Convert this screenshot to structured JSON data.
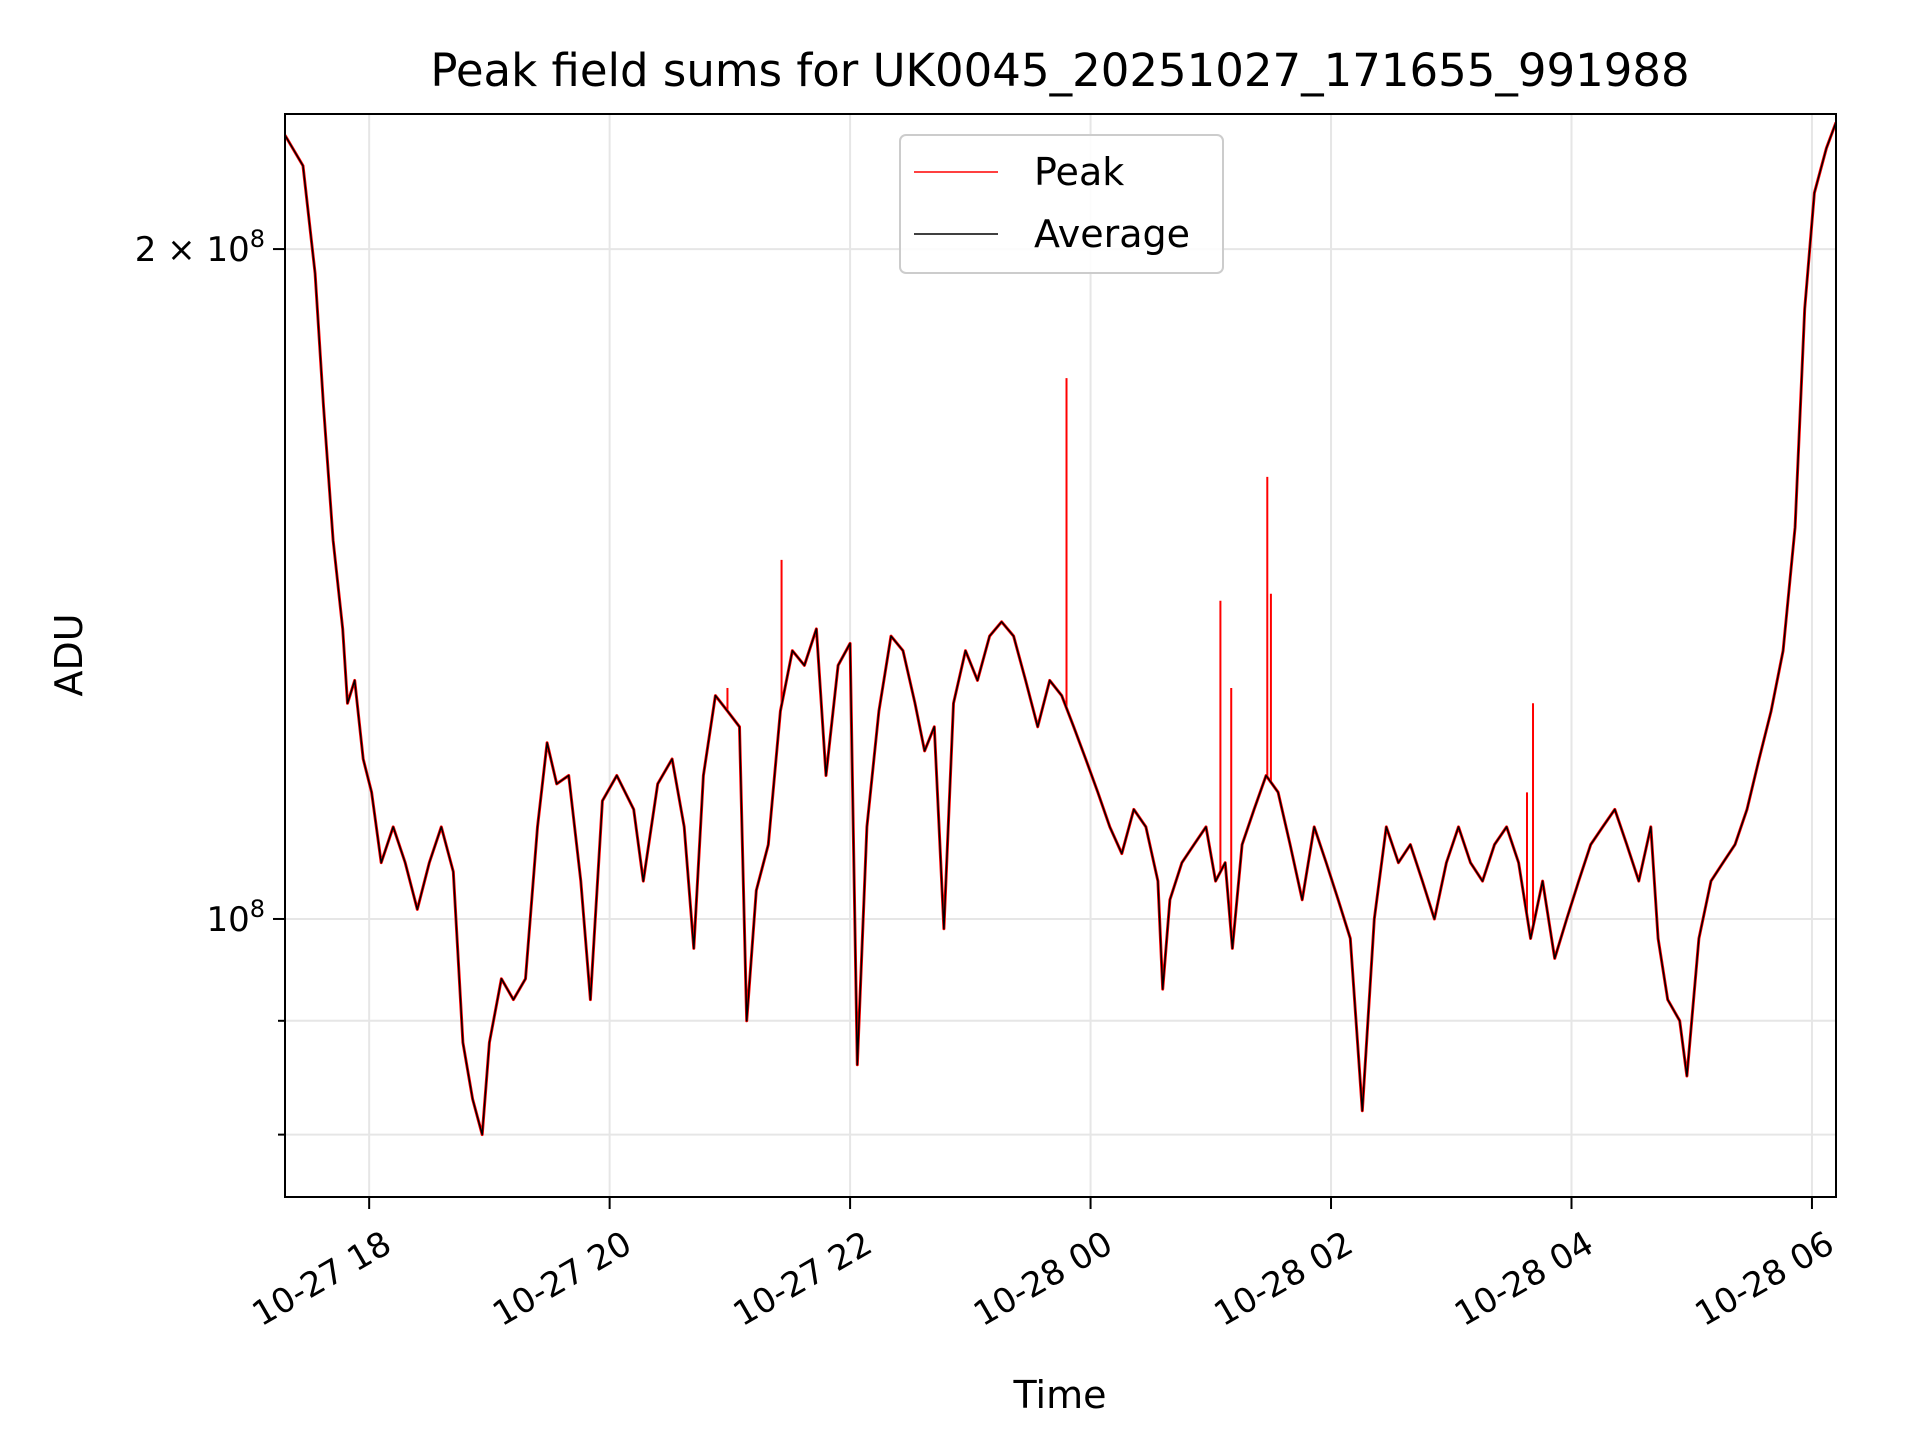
{
  "chart_data": {
    "type": "line",
    "title": "Peak field sums for UK0045_20251027_171655_991988",
    "xlabel": "Time",
    "ylabel": "ADU",
    "yscale": "log",
    "xlim": [
      17.3,
      30.2
    ],
    "ylim": [
      75000000,
      230000000
    ],
    "grid": true,
    "legend_position": "top-center",
    "x_ticks": [
      {
        "value": 18,
        "label": "10-27 18"
      },
      {
        "value": 20,
        "label": "10-27 20"
      },
      {
        "value": 22,
        "label": "10-27 22"
      },
      {
        "value": 24,
        "label": "10-28 00"
      },
      {
        "value": 26,
        "label": "10-28 02"
      },
      {
        "value": 28,
        "label": "10-28 04"
      },
      {
        "value": 30,
        "label": "10-28 06"
      }
    ],
    "y_major_ticks": [
      {
        "value": 100000000,
        "base": "10",
        "exp": "8",
        "label": "10^8"
      },
      {
        "value": 200000000,
        "mant": "2",
        "base": "10",
        "exp": "8",
        "label": "2×10^8"
      }
    ],
    "y_minor_ticks": [
      80000000,
      90000000
    ],
    "series": [
      {
        "name": "Peak",
        "color": "#ff0000",
        "spikes": [
          {
            "x": 20.98,
            "y": 127000000
          },
          {
            "x": 21.43,
            "y": 145000000
          },
          {
            "x": 23.8,
            "y": 175000000
          },
          {
            "x": 25.08,
            "y": 139000000
          },
          {
            "x": 25.17,
            "y": 127000000
          },
          {
            "x": 25.47,
            "y": 158000000
          },
          {
            "x": 25.5,
            "y": 140000000
          },
          {
            "x": 27.63,
            "y": 114000000
          },
          {
            "x": 27.68,
            "y": 125000000
          }
        ]
      },
      {
        "name": "Average",
        "color": "#000000",
        "points": [
          [
            17.3,
            225000000
          ],
          [
            17.45,
            218000000
          ],
          [
            17.55,
            195000000
          ],
          [
            17.62,
            170000000
          ],
          [
            17.7,
            148000000
          ],
          [
            17.78,
            135000000
          ],
          [
            17.82,
            125000000
          ],
          [
            17.88,
            128000000
          ],
          [
            17.95,
            118000000
          ],
          [
            18.02,
            114000000
          ],
          [
            18.1,
            106000000
          ],
          [
            18.2,
            110000000
          ],
          [
            18.3,
            106000000
          ],
          [
            18.4,
            101000000
          ],
          [
            18.5,
            106000000
          ],
          [
            18.6,
            110000000
          ],
          [
            18.7,
            105000000
          ],
          [
            18.78,
            88000000
          ],
          [
            18.86,
            83000000
          ],
          [
            18.94,
            80000000
          ],
          [
            19.0,
            88000000
          ],
          [
            19.1,
            94000000
          ],
          [
            19.2,
            92000000
          ],
          [
            19.3,
            94000000
          ],
          [
            19.4,
            110000000
          ],
          [
            19.48,
            120000000
          ],
          [
            19.56,
            115000000
          ],
          [
            19.66,
            116000000
          ],
          [
            19.76,
            104000000
          ],
          [
            19.84,
            92000000
          ],
          [
            19.94,
            113000000
          ],
          [
            20.06,
            116000000
          ],
          [
            20.2,
            112000000
          ],
          [
            20.28,
            104000000
          ],
          [
            20.4,
            115000000
          ],
          [
            20.52,
            118000000
          ],
          [
            20.62,
            110000000
          ],
          [
            20.7,
            97000000
          ],
          [
            20.78,
            116000000
          ],
          [
            20.88,
            126000000
          ],
          [
            20.98,
            124000000
          ],
          [
            21.08,
            122000000
          ],
          [
            21.14,
            90000000
          ],
          [
            21.22,
            103000000
          ],
          [
            21.32,
            108000000
          ],
          [
            21.42,
            124000000
          ],
          [
            21.52,
            132000000
          ],
          [
            21.62,
            130000000
          ],
          [
            21.72,
            135000000
          ],
          [
            21.8,
            116000000
          ],
          [
            21.9,
            130000000
          ],
          [
            22.0,
            133000000
          ],
          [
            22.06,
            86000000
          ],
          [
            22.14,
            110000000
          ],
          [
            22.24,
            124000000
          ],
          [
            22.34,
            134000000
          ],
          [
            22.44,
            132000000
          ],
          [
            22.54,
            125000000
          ],
          [
            22.62,
            119000000
          ],
          [
            22.7,
            122000000
          ],
          [
            22.78,
            99000000
          ],
          [
            22.86,
            125000000
          ],
          [
            22.96,
            132000000
          ],
          [
            23.06,
            128000000
          ],
          [
            23.16,
            134000000
          ],
          [
            23.26,
            136000000
          ],
          [
            23.36,
            134000000
          ],
          [
            23.46,
            128000000
          ],
          [
            23.56,
            122000000
          ],
          [
            23.66,
            128000000
          ],
          [
            23.76,
            126000000
          ],
          [
            23.86,
            122000000
          ],
          [
            23.96,
            118000000
          ],
          [
            24.06,
            114000000
          ],
          [
            24.16,
            110000000
          ],
          [
            24.26,
            107000000
          ],
          [
            24.36,
            112000000
          ],
          [
            24.46,
            110000000
          ],
          [
            24.56,
            104000000
          ],
          [
            24.6,
            93000000
          ],
          [
            24.66,
            102000000
          ],
          [
            24.76,
            106000000
          ],
          [
            24.86,
            108000000
          ],
          [
            24.96,
            110000000
          ],
          [
            25.04,
            104000000
          ],
          [
            25.12,
            106000000
          ],
          [
            25.18,
            97000000
          ],
          [
            25.26,
            108000000
          ],
          [
            25.36,
            112000000
          ],
          [
            25.46,
            116000000
          ],
          [
            25.56,
            114000000
          ],
          [
            25.66,
            108000000
          ],
          [
            25.76,
            102000000
          ],
          [
            25.86,
            110000000
          ],
          [
            25.96,
            106000000
          ],
          [
            26.06,
            102000000
          ],
          [
            26.16,
            98000000
          ],
          [
            26.26,
            82000000
          ],
          [
            26.36,
            100000000
          ],
          [
            26.46,
            110000000
          ],
          [
            26.56,
            106000000
          ],
          [
            26.66,
            108000000
          ],
          [
            26.76,
            104000000
          ],
          [
            26.86,
            100000000
          ],
          [
            26.96,
            106000000
          ],
          [
            27.06,
            110000000
          ],
          [
            27.16,
            106000000
          ],
          [
            27.26,
            104000000
          ],
          [
            27.36,
            108000000
          ],
          [
            27.46,
            110000000
          ],
          [
            27.56,
            106000000
          ],
          [
            27.66,
            98000000
          ],
          [
            27.76,
            104000000
          ],
          [
            27.86,
            96000000
          ],
          [
            27.96,
            100000000
          ],
          [
            28.06,
            104000000
          ],
          [
            28.16,
            108000000
          ],
          [
            28.26,
            110000000
          ],
          [
            28.36,
            112000000
          ],
          [
            28.46,
            108000000
          ],
          [
            28.56,
            104000000
          ],
          [
            28.66,
            110000000
          ],
          [
            28.72,
            98000000
          ],
          [
            28.8,
            92000000
          ],
          [
            28.9,
            90000000
          ],
          [
            28.96,
            85000000
          ],
          [
            29.06,
            98000000
          ],
          [
            29.16,
            104000000
          ],
          [
            29.26,
            106000000
          ],
          [
            29.36,
            108000000
          ],
          [
            29.46,
            112000000
          ],
          [
            29.56,
            118000000
          ],
          [
            29.66,
            124000000
          ],
          [
            29.76,
            132000000
          ],
          [
            29.86,
            150000000
          ],
          [
            29.94,
            188000000
          ],
          [
            30.02,
            212000000
          ],
          [
            30.12,
            222000000
          ],
          [
            30.2,
            228000000
          ]
        ]
      }
    ]
  }
}
